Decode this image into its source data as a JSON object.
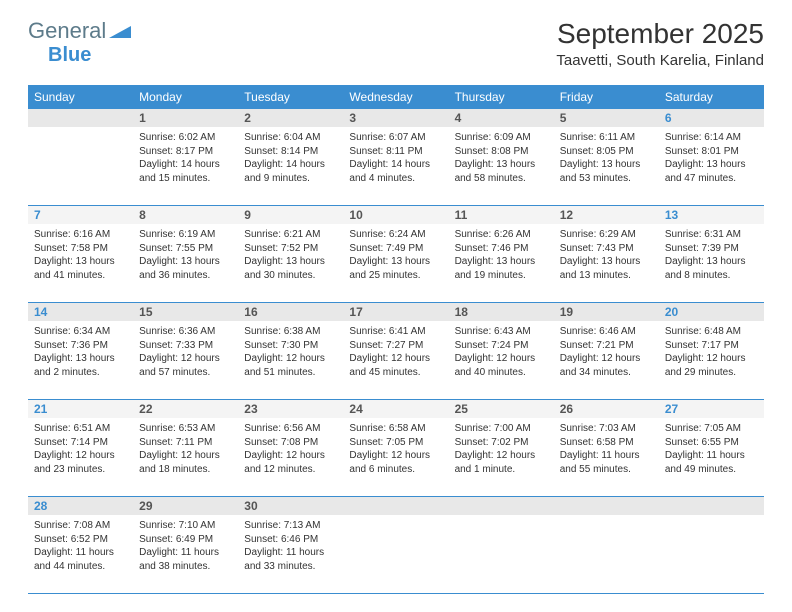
{
  "logo": {
    "text1": "General",
    "text2": "Blue"
  },
  "title": "September 2025",
  "location": "Taavetti, South Karelia, Finland",
  "colors": {
    "header_bg": "#3a8dd0",
    "header_text": "#ffffff",
    "daynum_bg_a": "#e8e8e8",
    "daynum_bg_b": "#f4f4f4",
    "weekend_color": "#3a8dd0",
    "text": "#333333",
    "rule": "#3a8dd0"
  },
  "dayHeaders": [
    "Sunday",
    "Monday",
    "Tuesday",
    "Wednesday",
    "Thursday",
    "Friday",
    "Saturday"
  ],
  "weeks": [
    {
      "nums": [
        "",
        "1",
        "2",
        "3",
        "4",
        "5",
        "6"
      ],
      "cells": [
        {
          "sunrise": "",
          "sunset": "",
          "daylight": ""
        },
        {
          "sunrise": "Sunrise: 6:02 AM",
          "sunset": "Sunset: 8:17 PM",
          "daylight": "Daylight: 14 hours and 15 minutes."
        },
        {
          "sunrise": "Sunrise: 6:04 AM",
          "sunset": "Sunset: 8:14 PM",
          "daylight": "Daylight: 14 hours and 9 minutes."
        },
        {
          "sunrise": "Sunrise: 6:07 AM",
          "sunset": "Sunset: 8:11 PM",
          "daylight": "Daylight: 14 hours and 4 minutes."
        },
        {
          "sunrise": "Sunrise: 6:09 AM",
          "sunset": "Sunset: 8:08 PM",
          "daylight": "Daylight: 13 hours and 58 minutes."
        },
        {
          "sunrise": "Sunrise: 6:11 AM",
          "sunset": "Sunset: 8:05 PM",
          "daylight": "Daylight: 13 hours and 53 minutes."
        },
        {
          "sunrise": "Sunrise: 6:14 AM",
          "sunset": "Sunset: 8:01 PM",
          "daylight": "Daylight: 13 hours and 47 minutes."
        }
      ]
    },
    {
      "nums": [
        "7",
        "8",
        "9",
        "10",
        "11",
        "12",
        "13"
      ],
      "cells": [
        {
          "sunrise": "Sunrise: 6:16 AM",
          "sunset": "Sunset: 7:58 PM",
          "daylight": "Daylight: 13 hours and 41 minutes."
        },
        {
          "sunrise": "Sunrise: 6:19 AM",
          "sunset": "Sunset: 7:55 PM",
          "daylight": "Daylight: 13 hours and 36 minutes."
        },
        {
          "sunrise": "Sunrise: 6:21 AM",
          "sunset": "Sunset: 7:52 PM",
          "daylight": "Daylight: 13 hours and 30 minutes."
        },
        {
          "sunrise": "Sunrise: 6:24 AM",
          "sunset": "Sunset: 7:49 PM",
          "daylight": "Daylight: 13 hours and 25 minutes."
        },
        {
          "sunrise": "Sunrise: 6:26 AM",
          "sunset": "Sunset: 7:46 PM",
          "daylight": "Daylight: 13 hours and 19 minutes."
        },
        {
          "sunrise": "Sunrise: 6:29 AM",
          "sunset": "Sunset: 7:43 PM",
          "daylight": "Daylight: 13 hours and 13 minutes."
        },
        {
          "sunrise": "Sunrise: 6:31 AM",
          "sunset": "Sunset: 7:39 PM",
          "daylight": "Daylight: 13 hours and 8 minutes."
        }
      ]
    },
    {
      "nums": [
        "14",
        "15",
        "16",
        "17",
        "18",
        "19",
        "20"
      ],
      "cells": [
        {
          "sunrise": "Sunrise: 6:34 AM",
          "sunset": "Sunset: 7:36 PM",
          "daylight": "Daylight: 13 hours and 2 minutes."
        },
        {
          "sunrise": "Sunrise: 6:36 AM",
          "sunset": "Sunset: 7:33 PM",
          "daylight": "Daylight: 12 hours and 57 minutes."
        },
        {
          "sunrise": "Sunrise: 6:38 AM",
          "sunset": "Sunset: 7:30 PM",
          "daylight": "Daylight: 12 hours and 51 minutes."
        },
        {
          "sunrise": "Sunrise: 6:41 AM",
          "sunset": "Sunset: 7:27 PM",
          "daylight": "Daylight: 12 hours and 45 minutes."
        },
        {
          "sunrise": "Sunrise: 6:43 AM",
          "sunset": "Sunset: 7:24 PM",
          "daylight": "Daylight: 12 hours and 40 minutes."
        },
        {
          "sunrise": "Sunrise: 6:46 AM",
          "sunset": "Sunset: 7:21 PM",
          "daylight": "Daylight: 12 hours and 34 minutes."
        },
        {
          "sunrise": "Sunrise: 6:48 AM",
          "sunset": "Sunset: 7:17 PM",
          "daylight": "Daylight: 12 hours and 29 minutes."
        }
      ]
    },
    {
      "nums": [
        "21",
        "22",
        "23",
        "24",
        "25",
        "26",
        "27"
      ],
      "cells": [
        {
          "sunrise": "Sunrise: 6:51 AM",
          "sunset": "Sunset: 7:14 PM",
          "daylight": "Daylight: 12 hours and 23 minutes."
        },
        {
          "sunrise": "Sunrise: 6:53 AM",
          "sunset": "Sunset: 7:11 PM",
          "daylight": "Daylight: 12 hours and 18 minutes."
        },
        {
          "sunrise": "Sunrise: 6:56 AM",
          "sunset": "Sunset: 7:08 PM",
          "daylight": "Daylight: 12 hours and 12 minutes."
        },
        {
          "sunrise": "Sunrise: 6:58 AM",
          "sunset": "Sunset: 7:05 PM",
          "daylight": "Daylight: 12 hours and 6 minutes."
        },
        {
          "sunrise": "Sunrise: 7:00 AM",
          "sunset": "Sunset: 7:02 PM",
          "daylight": "Daylight: 12 hours and 1 minute."
        },
        {
          "sunrise": "Sunrise: 7:03 AM",
          "sunset": "Sunset: 6:58 PM",
          "daylight": "Daylight: 11 hours and 55 minutes."
        },
        {
          "sunrise": "Sunrise: 7:05 AM",
          "sunset": "Sunset: 6:55 PM",
          "daylight": "Daylight: 11 hours and 49 minutes."
        }
      ]
    },
    {
      "nums": [
        "28",
        "29",
        "30",
        "",
        "",
        "",
        ""
      ],
      "cells": [
        {
          "sunrise": "Sunrise: 7:08 AM",
          "sunset": "Sunset: 6:52 PM",
          "daylight": "Daylight: 11 hours and 44 minutes."
        },
        {
          "sunrise": "Sunrise: 7:10 AM",
          "sunset": "Sunset: 6:49 PM",
          "daylight": "Daylight: 11 hours and 38 minutes."
        },
        {
          "sunrise": "Sunrise: 7:13 AM",
          "sunset": "Sunset: 6:46 PM",
          "daylight": "Daylight: 11 hours and 33 minutes."
        },
        {
          "sunrise": "",
          "sunset": "",
          "daylight": ""
        },
        {
          "sunrise": "",
          "sunset": "",
          "daylight": ""
        },
        {
          "sunrise": "",
          "sunset": "",
          "daylight": ""
        },
        {
          "sunrise": "",
          "sunset": "",
          "daylight": ""
        }
      ]
    }
  ]
}
